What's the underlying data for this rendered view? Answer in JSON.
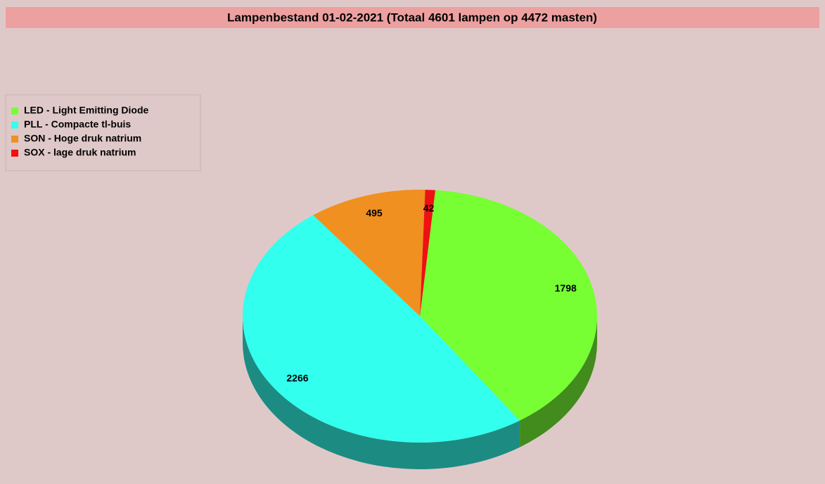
{
  "chart_data": {
    "type": "pie",
    "title": "Lampenbestand 01-02-2021 (Totaal 4601 lampen op 4472 masten)",
    "categories": [
      "LED - Light Emitting Diode",
      "PLL - Compacte tl-buis",
      "SON - Hoge druk natrium",
      "SOX - lage druk natrium"
    ],
    "values": [
      1798,
      2266,
      495,
      42
    ],
    "colors": [
      "#77ff33",
      "#33ffee",
      "#f09020",
      "#ee1111"
    ]
  }
}
